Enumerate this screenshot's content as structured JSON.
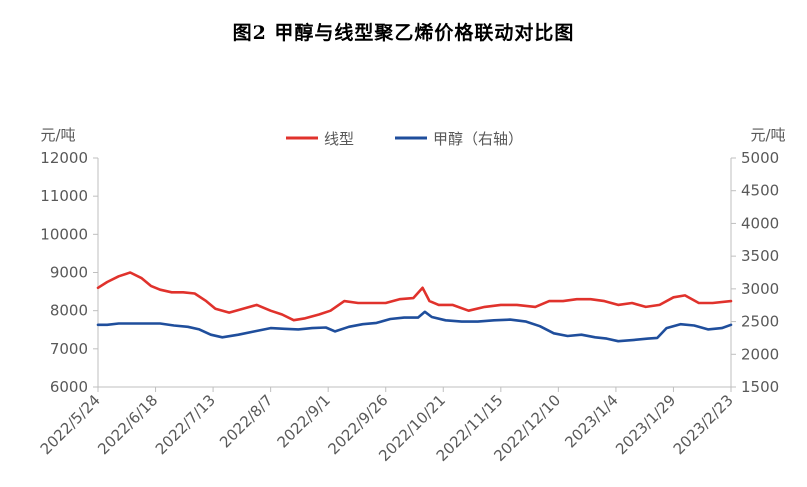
{
  "title": "图2 甲醇与线型聚乙烯价格联动对比图",
  "chart_data": {
    "type": "line",
    "title": "图2 甲醇与线型聚乙烯价格联动对比图",
    "left_unit": "元/吨",
    "right_unit": "元/吨",
    "y_left_lim": [
      6000,
      12000
    ],
    "y_right_lim": [
      1500,
      5000
    ],
    "y_left_ticks": [
      "12000",
      "11000",
      "10000",
      "9000",
      "8000",
      "7000",
      "6000"
    ],
    "y_right_ticks": [
      "5000",
      "4500",
      "4000",
      "3500",
      "3000",
      "2500",
      "2000",
      "1500"
    ],
    "x_tick_labels": [
      "2022/5/24",
      "2022/6/18",
      "2022/7/13",
      "2022/8/7",
      "2022/9/1",
      "2022/9/26",
      "2022/10/21",
      "2022/11/15",
      "2022/12/10",
      "2023/1/4",
      "2023/1/29",
      "2023/2/23"
    ],
    "x_start": "2022/5/24",
    "x_end": "2023/2/23",
    "grid": false,
    "legend": "top",
    "series": [
      {
        "name": "线型",
        "axis": "left",
        "color": "#e0322c",
        "x": [
          "2022/5/24",
          "2022/5/28",
          "2022/6/2",
          "2022/6/7",
          "2022/6/12",
          "2022/6/16",
          "2022/6/20",
          "2022/6/25",
          "2022/6/30",
          "2022/7/5",
          "2022/7/10",
          "2022/7/14",
          "2022/7/20",
          "2022/7/26",
          "2022/8/1",
          "2022/8/7",
          "2022/8/12",
          "2022/8/17",
          "2022/8/22",
          "2022/8/28",
          "2022/9/2",
          "2022/9/8",
          "2022/9/14",
          "2022/9/20",
          "2022/9/26",
          "2022/10/2",
          "2022/10/8",
          "2022/10/12",
          "2022/10/15",
          "2022/10/19",
          "2022/10/25",
          "2022/11/1",
          "2022/11/8",
          "2022/11/15",
          "2022/11/22",
          "2022/11/30",
          "2022/12/6",
          "2022/12/12",
          "2022/12/18",
          "2022/12/24",
          "2022/12/30",
          "2023/1/5",
          "2023/1/11",
          "2023/1/17",
          "2023/1/23",
          "2023/1/29",
          "2023/2/3",
          "2023/2/9",
          "2023/2/15",
          "2023/2/23"
        ],
        "values": [
          8600,
          8750,
          8900,
          9000,
          8850,
          8650,
          8550,
          8480,
          8480,
          8450,
          8250,
          8050,
          7950,
          8050,
          8150,
          8000,
          7900,
          7750,
          7800,
          7900,
          8000,
          8250,
          8200,
          8200,
          8200,
          8300,
          8330,
          8600,
          8250,
          8150,
          8150,
          8000,
          8100,
          8150,
          8150,
          8100,
          8250,
          8250,
          8300,
          8300,
          8250,
          8150,
          8200,
          8100,
          8150,
          8350,
          8400,
          8200,
          8200,
          8250
        ]
      },
      {
        "name": "甲醇（右轴）",
        "axis": "right",
        "color": "#1f4e9c",
        "x": [
          "2022/5/24",
          "2022/5/28",
          "2022/6/2",
          "2022/6/8",
          "2022/6/14",
          "2022/6/20",
          "2022/6/26",
          "2022/7/2",
          "2022/7/7",
          "2022/7/12",
          "2022/7/17",
          "2022/7/24",
          "2022/7/31",
          "2022/8/7",
          "2022/8/13",
          "2022/8/19",
          "2022/8/25",
          "2022/8/31",
          "2022/9/4",
          "2022/9/10",
          "2022/9/16",
          "2022/9/22",
          "2022/9/28",
          "2022/10/4",
          "2022/10/10",
          "2022/10/13",
          "2022/10/16",
          "2022/10/22",
          "2022/10/29",
          "2022/11/5",
          "2022/11/12",
          "2022/11/19",
          "2022/11/26",
          "2022/12/2",
          "2022/12/8",
          "2022/12/14",
          "2022/12/20",
          "2022/12/26",
          "2022/12/31",
          "2023/1/5",
          "2023/1/12",
          "2023/1/18",
          "2023/1/22",
          "2023/1/26",
          "2023/2/1",
          "2023/2/7",
          "2023/2/13",
          "2023/2/19",
          "2023/2/23"
        ],
        "values": [
          2450,
          2450,
          2470,
          2470,
          2470,
          2470,
          2440,
          2420,
          2380,
          2300,
          2260,
          2300,
          2350,
          2400,
          2390,
          2380,
          2400,
          2410,
          2350,
          2420,
          2460,
          2480,
          2540,
          2560,
          2560,
          2650,
          2570,
          2520,
          2500,
          2500,
          2520,
          2530,
          2500,
          2430,
          2320,
          2280,
          2300,
          2260,
          2240,
          2200,
          2220,
          2240,
          2250,
          2400,
          2460,
          2440,
          2380,
          2400,
          2450
        ]
      }
    ]
  }
}
